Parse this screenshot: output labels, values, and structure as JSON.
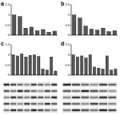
{
  "chart_data": [
    {
      "type": "bar",
      "title": "a",
      "categories": [
        null,
        null,
        null,
        null,
        null,
        null,
        null,
        null
      ],
      "values": [
        1.0,
        0.92,
        0.35,
        0.4,
        0.22,
        0.28,
        0.15,
        0.2
      ],
      "color": "#555555",
      "ylim": [
        0,
        1.5
      ],
      "yticks": [
        0,
        0.5,
        1,
        1.5
      ],
      "tick_labels": "y"
    },
    {
      "type": "bar",
      "title": "b",
      "categories": [
        null,
        null,
        null,
        null,
        null,
        null,
        null,
        null
      ],
      "values": [
        1.0,
        0.85,
        0.45,
        0.3,
        0.25,
        0.35,
        0.18,
        0.22
      ],
      "color": "#555555",
      "ylim": [
        0,
        1.5
      ],
      "yticks": [
        0,
        0.5,
        1,
        1.5
      ],
      "tick_labels": "y"
    },
    {
      "type": "bar",
      "title": "c",
      "categories": [
        null,
        null,
        null,
        null,
        null,
        null,
        null,
        null,
        null,
        null,
        null
      ],
      "values": [
        1.0,
        0.95,
        1.05,
        0.9,
        0.98,
        1.0,
        0.92,
        0.3,
        0.25,
        0.9,
        0.2
      ],
      "color": "#555555",
      "ylim": [
        0,
        1.5
      ],
      "yticks": [
        0,
        0.5,
        1,
        1.5
      ],
      "tick_labels": "y"
    },
    {
      "type": "bar",
      "title": "d",
      "categories": [
        null,
        null,
        null,
        null,
        null,
        null,
        null,
        null,
        null,
        null,
        null
      ],
      "values": [
        1.0,
        0.9,
        0.95,
        0.85,
        1.0,
        0.4,
        0.35,
        0.3,
        0.95,
        0.25,
        0.3
      ],
      "color": "#555555",
      "ylim": [
        0,
        1.5
      ],
      "yticks": [
        0,
        0.5,
        1,
        1.5
      ],
      "tick_labels": "y"
    }
  ]
}
